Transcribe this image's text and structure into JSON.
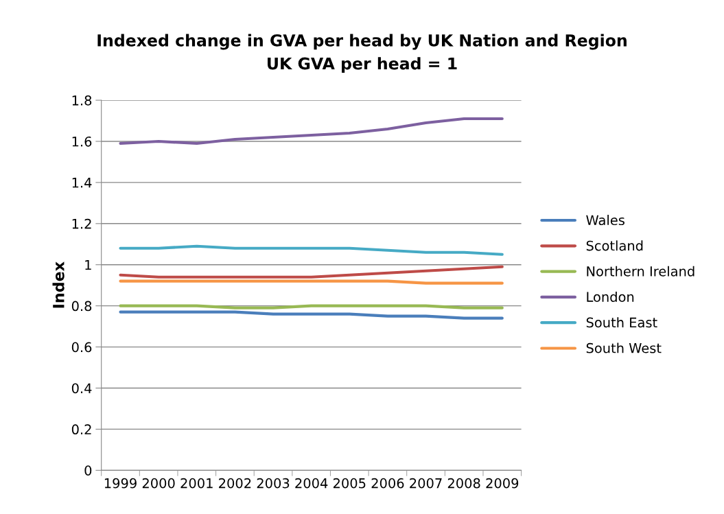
{
  "chart_data": {
    "type": "line",
    "title": "Indexed change in GVA per head by UK Nation and Region",
    "subtitle": "UK GVA per head = 1",
    "ylabel": "Index",
    "categories": [
      "1999",
      "2000",
      "2001",
      "2002",
      "2003",
      "2004",
      "2005",
      "2006",
      "2007",
      "2008",
      "2009"
    ],
    "series": [
      {
        "name": "Wales",
        "color": "#4a7ebb",
        "values": [
          0.77,
          0.77,
          0.77,
          0.77,
          0.76,
          0.76,
          0.76,
          0.75,
          0.75,
          0.74,
          0.74
        ]
      },
      {
        "name": "Scotland",
        "color": "#be4b48",
        "values": [
          0.95,
          0.94,
          0.94,
          0.94,
          0.94,
          0.94,
          0.95,
          0.96,
          0.97,
          0.98,
          0.99
        ]
      },
      {
        "name": "Northern Ireland",
        "color": "#98b954",
        "values": [
          0.8,
          0.8,
          0.8,
          0.79,
          0.79,
          0.8,
          0.8,
          0.8,
          0.8,
          0.79,
          0.79
        ]
      },
      {
        "name": "London",
        "color": "#7d60a0",
        "values": [
          1.59,
          1.6,
          1.59,
          1.61,
          1.62,
          1.63,
          1.64,
          1.66,
          1.69,
          1.71,
          1.71
        ]
      },
      {
        "name": "South East",
        "color": "#46aac5",
        "values": [
          1.08,
          1.08,
          1.09,
          1.08,
          1.08,
          1.08,
          1.08,
          1.07,
          1.06,
          1.06,
          1.05
        ]
      },
      {
        "name": "South West",
        "color": "#f69545",
        "values": [
          0.92,
          0.92,
          0.92,
          0.92,
          0.92,
          0.92,
          0.92,
          0.92,
          0.91,
          0.91,
          0.91
        ]
      }
    ],
    "ylim": [
      0,
      1.8
    ],
    "yticks": [
      0,
      0.2,
      0.4,
      0.6,
      0.8,
      1,
      1.2,
      1.4,
      1.6,
      1.8
    ],
    "grid": "y",
    "legend": "right",
    "marker": "none",
    "line_style": "solid"
  }
}
